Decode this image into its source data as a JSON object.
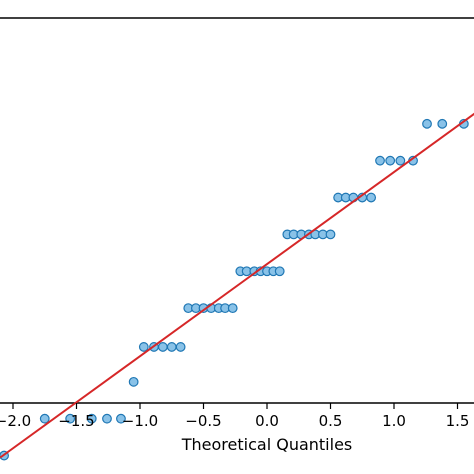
{
  "chart_data": {
    "type": "scatter",
    "title": "",
    "xlabel": "Theoretical Quantiles",
    "ylabel": "",
    "xlim": [
      -2.1,
      1.65
    ],
    "ylim": [
      -1.3,
      1.6
    ],
    "grid": false,
    "legend": "none",
    "x_ticks": [
      -2.0,
      -1.5,
      -1.0,
      -0.5,
      0.0,
      0.5,
      1.0,
      1.5
    ],
    "x_tick_labels": [
      "−2.0",
      "−1.5",
      "−1.0",
      "−0.5",
      "0.0",
      "0.5",
      "1.0",
      "1.5"
    ],
    "series": [
      {
        "points": [
          {
            "x": -2.07,
            "y": -1.24
          },
          {
            "x": -1.75,
            "y": -1.05
          },
          {
            "x": -1.55,
            "y": -1.05
          },
          {
            "x": -1.38,
            "y": -1.05
          },
          {
            "x": -1.26,
            "y": -1.05
          },
          {
            "x": -1.15,
            "y": -1.05
          },
          {
            "x": -1.05,
            "y": -0.86
          },
          {
            "x": -0.97,
            "y": -0.68
          },
          {
            "x": -0.89,
            "y": -0.68
          },
          {
            "x": -0.82,
            "y": -0.68
          },
          {
            "x": -0.75,
            "y": -0.68
          },
          {
            "x": -0.68,
            "y": -0.68
          },
          {
            "x": -0.62,
            "y": -0.48
          },
          {
            "x": -0.56,
            "y": -0.48
          },
          {
            "x": -0.5,
            "y": -0.48
          },
          {
            "x": -0.44,
            "y": -0.48
          },
          {
            "x": -0.38,
            "y": -0.48
          },
          {
            "x": -0.33,
            "y": -0.48
          },
          {
            "x": -0.27,
            "y": -0.48
          },
          {
            "x": -0.21,
            "y": -0.29
          },
          {
            "x": -0.16,
            "y": -0.29
          },
          {
            "x": -0.1,
            "y": -0.29
          },
          {
            "x": -0.05,
            "y": -0.29
          },
          {
            "x": 0.0,
            "y": -0.29
          },
          {
            "x": 0.05,
            "y": -0.29
          },
          {
            "x": 0.1,
            "y": -0.29
          },
          {
            "x": 0.16,
            "y": -0.1
          },
          {
            "x": 0.21,
            "y": -0.1
          },
          {
            "x": 0.27,
            "y": -0.1
          },
          {
            "x": 0.33,
            "y": -0.1
          },
          {
            "x": 0.38,
            "y": -0.1
          },
          {
            "x": 0.44,
            "y": -0.1
          },
          {
            "x": 0.5,
            "y": -0.1
          },
          {
            "x": 0.56,
            "y": 0.09
          },
          {
            "x": 0.62,
            "y": 0.09
          },
          {
            "x": 0.68,
            "y": 0.09
          },
          {
            "x": 0.75,
            "y": 0.09
          },
          {
            "x": 0.82,
            "y": 0.09
          },
          {
            "x": 0.89,
            "y": 0.28
          },
          {
            "x": 0.97,
            "y": 0.28
          },
          {
            "x": 1.05,
            "y": 0.28
          },
          {
            "x": 1.15,
            "y": 0.28
          },
          {
            "x": 1.26,
            "y": 0.47
          },
          {
            "x": 1.38,
            "y": 0.47
          },
          {
            "x": 1.55,
            "y": 0.47
          }
        ]
      }
    ],
    "reference_line": {
      "x": [
        -2.1,
        1.65
      ],
      "y": [
        -1.25,
        0.53
      ]
    },
    "colors": {
      "marker_fill": "#89c2e8",
      "marker_edge": "#1f77b4",
      "line": "#d62728",
      "axes": "#000000"
    }
  }
}
